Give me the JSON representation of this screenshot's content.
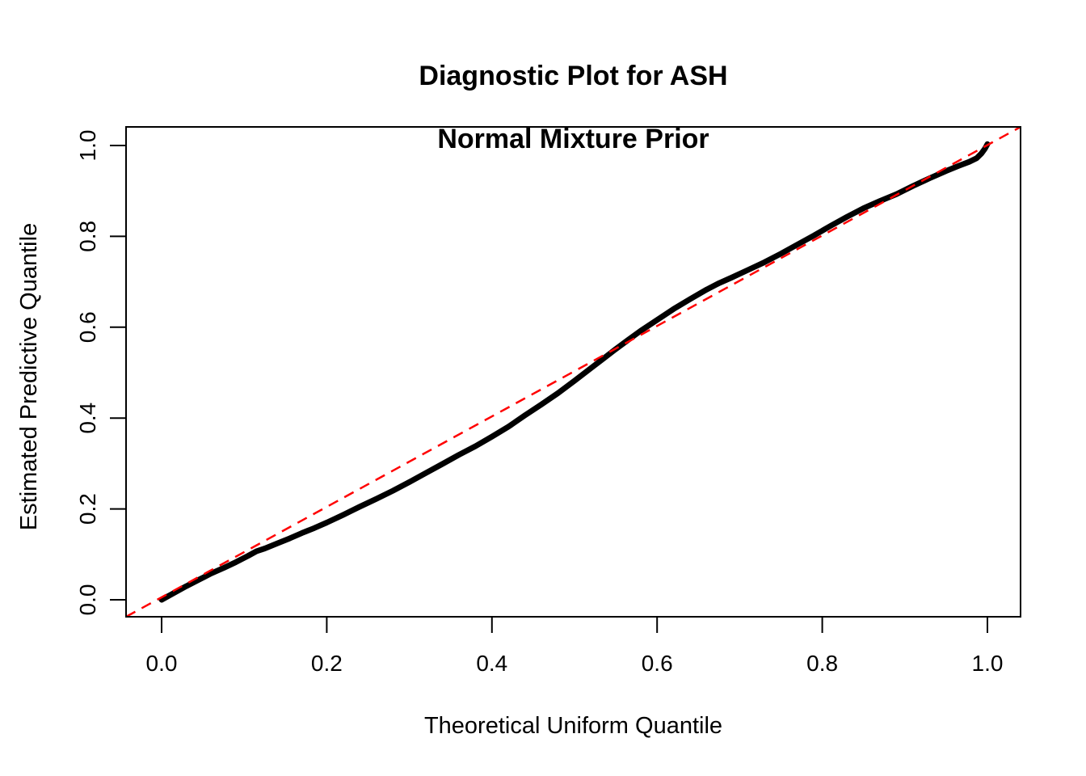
{
  "figure": {
    "title_line1": "Diagnostic Plot for ASH",
    "title_line2": "Normal Mixture Prior",
    "x_axis_label": "Theoretical Uniform Quantile",
    "y_axis_label": "Estimated Predictive Quantile"
  },
  "colors": {
    "curve": "#000000",
    "reference_line": "#FF0000",
    "axis": "#000000",
    "background": "#FFFFFF"
  },
  "chart_data": {
    "type": "scatter",
    "title": "Diagnostic Plot for ASH\nNormal Mixture Prior",
    "xlabel": "Theoretical Uniform Quantile",
    "ylabel": "Estimated Predictive Quantile",
    "xlim": [
      -0.04,
      1.04
    ],
    "ylim": [
      -0.04,
      1.04
    ],
    "grid": false,
    "legend_position": "none",
    "x_ticks": [
      0.0,
      0.2,
      0.4,
      0.6,
      0.8,
      1.0
    ],
    "y_ticks": [
      0.0,
      0.2,
      0.4,
      0.6,
      0.8,
      1.0
    ],
    "x_tick_labels": [
      "0.0",
      "0.2",
      "0.4",
      "0.6",
      "0.8",
      "1.0"
    ],
    "y_tick_labels": [
      "0.0",
      "0.2",
      "0.4",
      "0.6",
      "0.8",
      "1.0"
    ],
    "series": [
      {
        "name": "estimated-predictive-quantile-curve",
        "type": "line",
        "color": "#000000",
        "linewidth": 7,
        "style": "solid",
        "points": [
          [
            0.0,
            0.0
          ],
          [
            0.015,
            0.015
          ],
          [
            0.03,
            0.03
          ],
          [
            0.045,
            0.044
          ],
          [
            0.06,
            0.058
          ],
          [
            0.075,
            0.07
          ],
          [
            0.09,
            0.083
          ],
          [
            0.105,
            0.097
          ],
          [
            0.115,
            0.107
          ],
          [
            0.125,
            0.113
          ],
          [
            0.14,
            0.124
          ],
          [
            0.155,
            0.135
          ],
          [
            0.17,
            0.147
          ],
          [
            0.185,
            0.158
          ],
          [
            0.2,
            0.17
          ],
          [
            0.22,
            0.187
          ],
          [
            0.24,
            0.205
          ],
          [
            0.26,
            0.222
          ],
          [
            0.28,
            0.24
          ],
          [
            0.3,
            0.259
          ],
          [
            0.32,
            0.279
          ],
          [
            0.34,
            0.299
          ],
          [
            0.36,
            0.319
          ],
          [
            0.38,
            0.338
          ],
          [
            0.4,
            0.359
          ],
          [
            0.42,
            0.381
          ],
          [
            0.44,
            0.406
          ],
          [
            0.46,
            0.43
          ],
          [
            0.48,
            0.455
          ],
          [
            0.5,
            0.482
          ],
          [
            0.52,
            0.51
          ],
          [
            0.535,
            0.531
          ],
          [
            0.55,
            0.552
          ],
          [
            0.565,
            0.572
          ],
          [
            0.58,
            0.592
          ],
          [
            0.6,
            0.616
          ],
          [
            0.62,
            0.64
          ],
          [
            0.64,
            0.662
          ],
          [
            0.66,
            0.683
          ],
          [
            0.675,
            0.697
          ],
          [
            0.69,
            0.709
          ],
          [
            0.71,
            0.726
          ],
          [
            0.73,
            0.743
          ],
          [
            0.75,
            0.762
          ],
          [
            0.77,
            0.782
          ],
          [
            0.79,
            0.802
          ],
          [
            0.81,
            0.823
          ],
          [
            0.83,
            0.843
          ],
          [
            0.85,
            0.862
          ],
          [
            0.87,
            0.878
          ],
          [
            0.89,
            0.893
          ],
          [
            0.91,
            0.911
          ],
          [
            0.93,
            0.928
          ],
          [
            0.95,
            0.944
          ],
          [
            0.965,
            0.955
          ],
          [
            0.978,
            0.964
          ],
          [
            0.987,
            0.972
          ],
          [
            0.993,
            0.983
          ],
          [
            0.997,
            0.993
          ],
          [
            1.0,
            1.003
          ]
        ]
      },
      {
        "name": "reference-diagonal-line",
        "type": "line",
        "color": "#FF0000",
        "linewidth": 2.5,
        "style": "dashed",
        "reference": true,
        "points": [
          [
            0,
            0
          ],
          [
            1,
            1
          ]
        ]
      }
    ]
  }
}
